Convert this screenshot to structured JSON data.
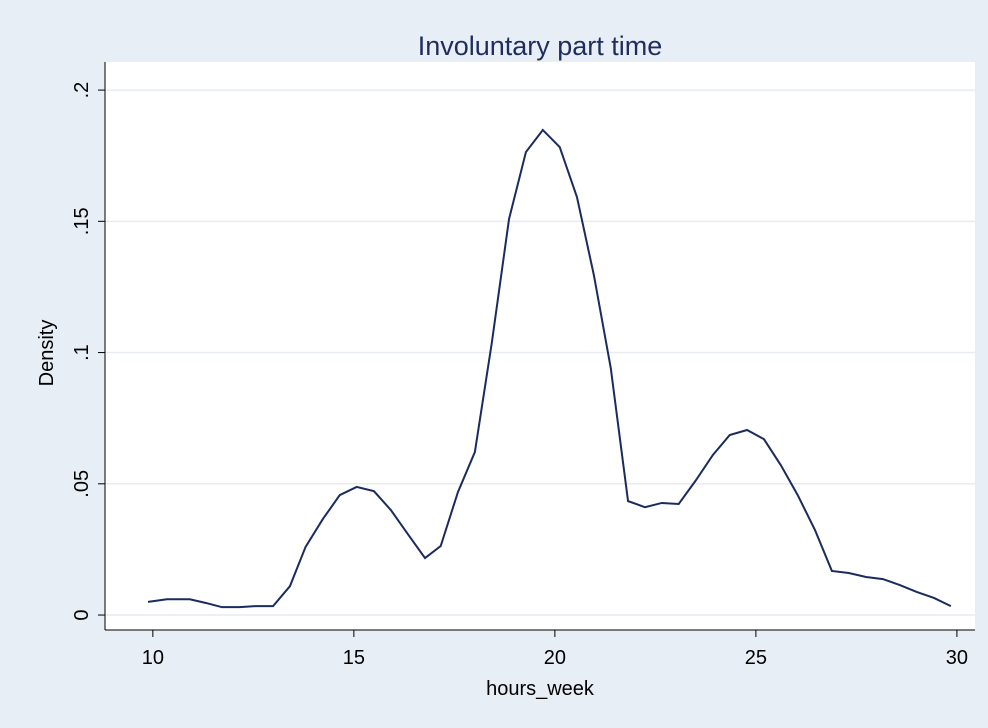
{
  "chart_data": {
    "type": "line",
    "title": "Involuntary part time",
    "x_label": "hours_week",
    "y_label": "Density",
    "x": [
      9.88,
      10.35,
      10.92,
      11.32,
      11.72,
      12.16,
      12.56,
      12.99,
      13.41,
      13.8,
      14.23,
      14.65,
      15.07,
      15.5,
      15.92,
      16.34,
      16.77,
      17.16,
      17.59,
      18.01,
      18.43,
      18.86,
      19.28,
      19.7,
      20.12,
      20.55,
      20.97,
      21.39,
      21.82,
      22.24,
      22.66,
      23.08,
      23.51,
      23.93,
      24.35,
      24.78,
      25.2,
      25.62,
      26.04,
      26.47,
      26.89,
      27.31,
      27.74,
      28.16,
      28.58,
      29.0,
      29.43,
      29.85
    ],
    "series": [
      {
        "name": "Density",
        "color": "#1a2b5e",
        "values": [
          0.005,
          0.006,
          0.006,
          0.0046,
          0.003,
          0.003,
          0.0034,
          0.0034,
          0.011,
          0.026,
          0.0366,
          0.0457,
          0.0488,
          0.0472,
          0.04,
          0.0309,
          0.0217,
          0.0263,
          0.0469,
          0.0621,
          0.1036,
          0.1509,
          0.1764,
          0.1848,
          0.1783,
          0.1592,
          0.1295,
          0.0941,
          0.0434,
          0.0411,
          0.0427,
          0.0423,
          0.0514,
          0.061,
          0.0686,
          0.0705,
          0.067,
          0.0571,
          0.0457,
          0.0324,
          0.0168,
          0.016,
          0.0145,
          0.0137,
          0.0114,
          0.0088,
          0.0065,
          0.0034
        ]
      }
    ],
    "xlim": [
      8.81,
      30.45
    ],
    "ylim": [
      -0.0057,
      0.2107
    ],
    "xticks": [
      10,
      15,
      20,
      25,
      30
    ],
    "yticks": [
      0,
      {
        "value": 0.05,
        "label": ".05"
      },
      {
        "value": 0.1,
        "label": ".1"
      },
      {
        "value": 0.15,
        "label": ".15"
      },
      {
        "value": 0.2,
        "label": ".2"
      }
    ],
    "grid": true
  }
}
